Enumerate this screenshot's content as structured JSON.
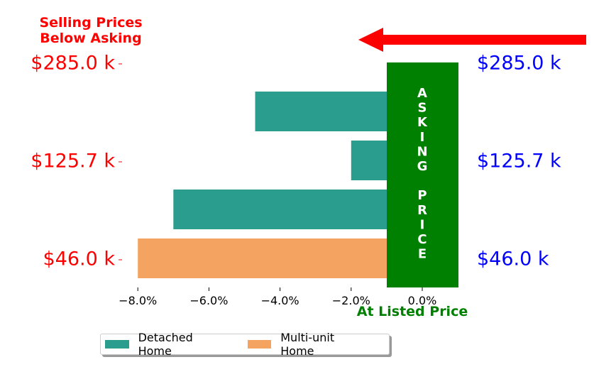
{
  "chart_data": {
    "type": "bar",
    "orientation": "horizontal",
    "categories": [
      "Multi-unit Home",
      "Detached Home",
      "Detached Home",
      "Detached Home"
    ],
    "values": [
      -8.0,
      -7.0,
      -2.0,
      -4.7
    ],
    "colors": [
      "#f4a460",
      "#2a9d8f",
      "#2a9d8f",
      "#2a9d8f"
    ],
    "xlim": [
      -8.5,
      0.9
    ],
    "xticks": [
      -8.0,
      -6.0,
      -4.0,
      -2.0,
      0.0
    ],
    "xtick_labels": [
      "−8.0%",
      "−6.0%",
      "−4.0%",
      "−2.0%",
      "0.0%"
    ],
    "left_labels": [
      "$285.0 k",
      "$125.7 k",
      "$46.0 k"
    ],
    "right_labels": [
      "$285.0 k",
      "$125.7 k",
      "$46.0 k"
    ],
    "annotation_top_left": [
      "Selling Prices",
      "Below Asking"
    ],
    "annotation_bottom": "At Listed Price",
    "asking_box_text": [
      "A",
      "S",
      "K",
      "I",
      "N",
      "G",
      "",
      "P",
      "R",
      "I",
      "C",
      "E"
    ],
    "legend": [
      {
        "name": "Detached Home",
        "color": "#2a9d8f"
      },
      {
        "name": "Multi-unit Home",
        "color": "#f4a460"
      }
    ],
    "colors_main": {
      "left_labels": "#ff0000",
      "right_labels": "#0000ff",
      "asking_box": "#008000",
      "arrow": "#ff0000",
      "bottom_note": "#008000"
    },
    "legend_placement": "bottom-left",
    "grid": false
  }
}
